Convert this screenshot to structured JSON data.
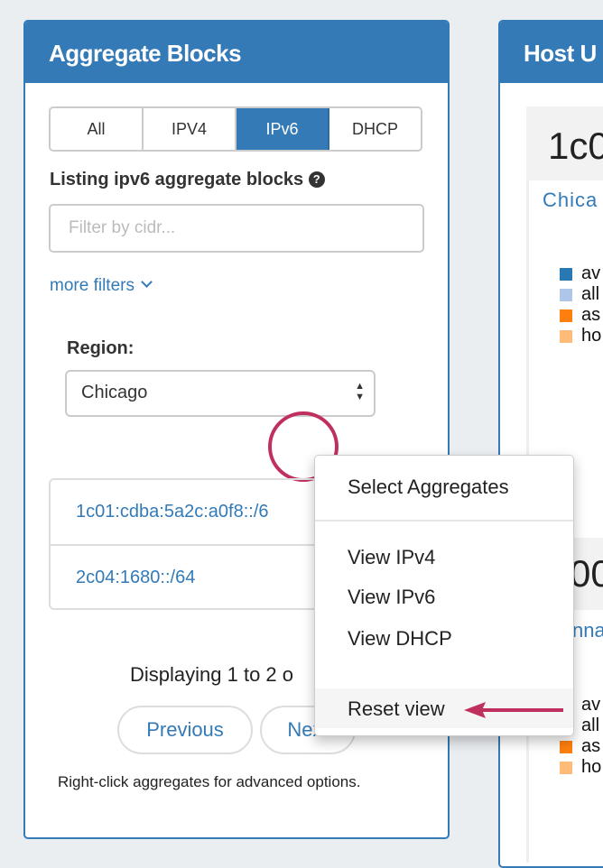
{
  "left_panel": {
    "title": "Aggregate Blocks",
    "tabs": [
      {
        "label": "All"
      },
      {
        "label": "IPV4"
      },
      {
        "label": "IPv6",
        "active": true
      },
      {
        "label": "DHCP"
      }
    ],
    "listing_label": "Listing ipv6 aggregate blocks",
    "filter_placeholder": "Filter by cidr...",
    "more_filters": "more filters",
    "region_label": "Region:",
    "region_value": "Chicago",
    "blocks": [
      "1c01:cdba:5a2c:a0f8::/6",
      "2c04:1680::/64"
    ],
    "displaying": "Displaying 1 to 2 o",
    "previous": "Previous",
    "next": "Next",
    "hint": "Right-click aggregates for advanced options."
  },
  "right_panel": {
    "title": "Host U",
    "card1_title": "1c0",
    "card1_sub": "Chica",
    "legend": [
      {
        "label": "av",
        "color": "#2878b4"
      },
      {
        "label": "all",
        "color": "#aec7e8"
      },
      {
        "label": "as",
        "color": "#ff7f0e"
      },
      {
        "label": "ho",
        "color": "#ffbb78"
      }
    ],
    "card2_title": "00",
    "card2_sub": "nna"
  },
  "context_menu": {
    "items": [
      "Select Aggregates",
      "View IPv4",
      "View IPv6",
      "View DHCP",
      "Reset view"
    ]
  },
  "colors": {
    "accent": "#337ab7",
    "annotation": "#c0305e"
  }
}
